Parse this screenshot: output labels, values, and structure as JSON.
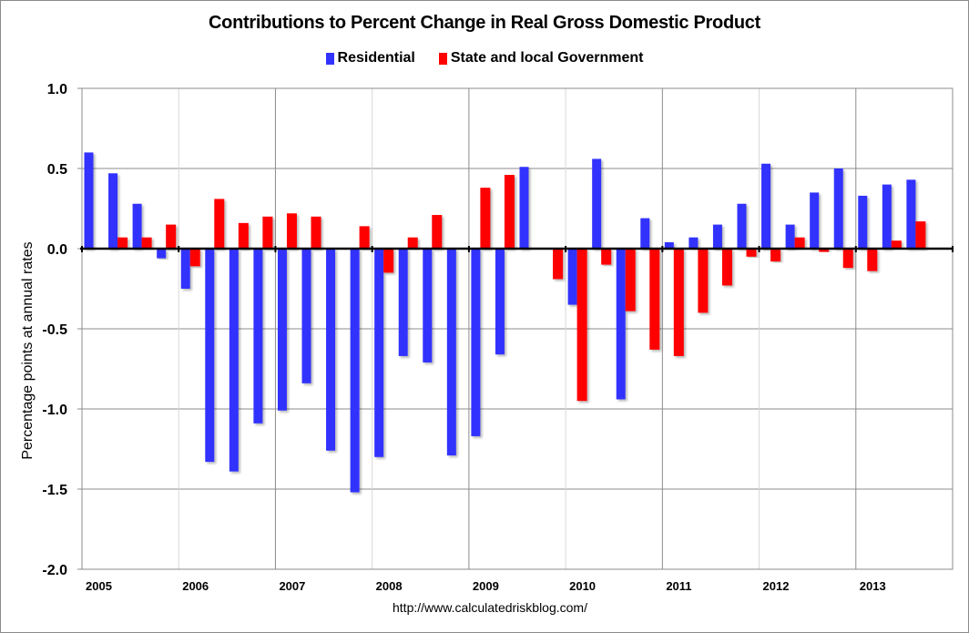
{
  "chart_data": {
    "type": "bar",
    "title": "Contributions to Percent Change in Real Gross Domestic Product",
    "xlabel": "",
    "ylabel": "Percentage points at annual rates",
    "ylim": [
      -2.0,
      1.0
    ],
    "yticks": [
      1.0,
      0.5,
      0.0,
      -0.5,
      -1.0,
      -1.5,
      -2.0
    ],
    "ytick_labels": [
      "1.0",
      "0.5",
      "0.0",
      "-0.5",
      "-1.0",
      "-1.5",
      "-2.0"
    ],
    "xtick_labels": [
      "2005",
      "2006",
      "2007",
      "2008",
      "2009",
      "2010",
      "2011",
      "2012",
      "2013"
    ],
    "grid": true,
    "legend_position": "top-center",
    "source_note": "http://www.calculatedriskblog.com/",
    "categories": [
      "2005Q1",
      "2005Q2",
      "2005Q3",
      "2005Q4",
      "2006Q1",
      "2006Q2",
      "2006Q3",
      "2006Q4",
      "2007Q1",
      "2007Q2",
      "2007Q3",
      "2007Q4",
      "2008Q1",
      "2008Q2",
      "2008Q3",
      "2008Q4",
      "2009Q1",
      "2009Q2",
      "2009Q3",
      "2009Q4",
      "2010Q1",
      "2010Q2",
      "2010Q3",
      "2010Q4",
      "2011Q1",
      "2011Q2",
      "2011Q3",
      "2011Q4",
      "2012Q1",
      "2012Q2",
      "2012Q3",
      "2012Q4",
      "2013Q1",
      "2013Q2",
      "2013Q3"
    ],
    "series": [
      {
        "name": "Residential",
        "color": "#3333ff",
        "values": [
          0.6,
          0.47,
          0.28,
          -0.06,
          -0.25,
          -1.33,
          -1.39,
          -1.09,
          -1.01,
          -0.84,
          -1.26,
          -1.52,
          -1.3,
          -0.67,
          -0.71,
          -1.29,
          -1.17,
          -0.66,
          0.51,
          0.0,
          -0.35,
          0.56,
          -0.94,
          0.19,
          0.04,
          0.07,
          0.15,
          0.28,
          0.53,
          0.15,
          0.35,
          0.5,
          0.33,
          0.4,
          0.43
        ]
      },
      {
        "name": "State and local Government",
        "color": "#ff0000",
        "values": [
          0.0,
          0.07,
          0.07,
          0.15,
          -0.11,
          0.31,
          0.16,
          0.2,
          0.22,
          0.2,
          0.0,
          0.14,
          -0.15,
          0.07,
          0.21,
          0.0,
          0.38,
          0.46,
          0.0,
          -0.19,
          -0.95,
          -0.1,
          -0.39,
          -0.63,
          -0.67,
          -0.4,
          -0.23,
          -0.05,
          -0.08,
          0.07,
          -0.02,
          -0.12,
          -0.14,
          0.05,
          0.17
        ]
      }
    ]
  }
}
